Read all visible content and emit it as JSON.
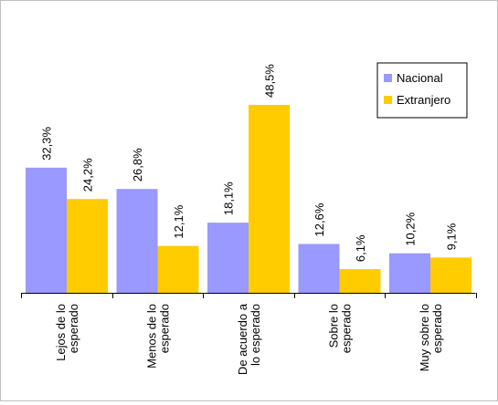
{
  "chart_data": {
    "type": "bar",
    "categories": [
      "Lejos de lo esperado",
      "Menos de lo esperado",
      "De acuerdo a lo esperado",
      "Sobre lo esperado",
      "Muy sobre lo esperado"
    ],
    "category_lines": [
      [
        "Lejos de lo",
        "esperado"
      ],
      [
        "Menos de lo",
        "esperado"
      ],
      [
        "De acuerdo a",
        "lo esperado"
      ],
      [
        "Sobre lo",
        "esperado"
      ],
      [
        "Muy sobre lo",
        "esperado"
      ]
    ],
    "series": [
      {
        "name": "Nacional",
        "color": "#9999ff",
        "values": [
          32.3,
          26.8,
          18.1,
          12.6,
          10.2
        ],
        "labels": [
          "32,3%",
          "26,8%",
          "18,1%",
          "12,6%",
          "10,2%"
        ]
      },
      {
        "name": "Extranjero",
        "color": "#ffcc00",
        "values": [
          24.2,
          12.1,
          48.5,
          6.1,
          9.1
        ],
        "labels": [
          "24,2%",
          "12,1%",
          "48,5%",
          "6,1%",
          "9,1%"
        ]
      }
    ],
    "ylim": [
      0,
      50
    ],
    "grid": false,
    "legend_position": "right"
  }
}
